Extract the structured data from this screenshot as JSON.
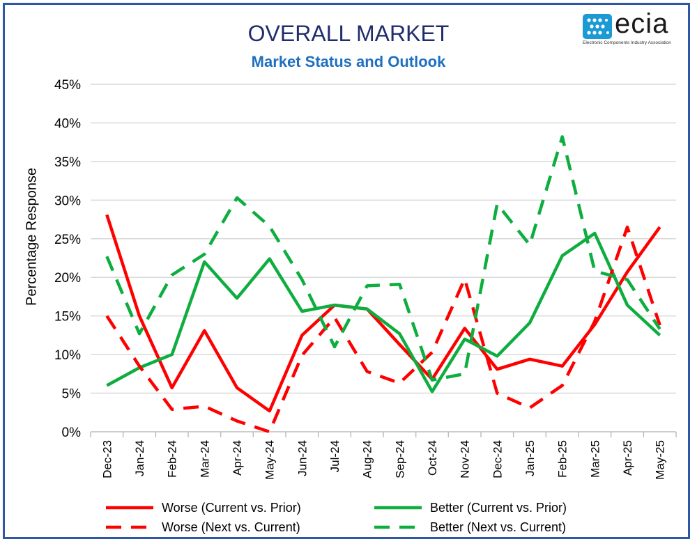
{
  "header": {
    "title": "OVERALL MARKET",
    "subtitle": "Market Status and Outlook"
  },
  "logo": {
    "word": "ecia",
    "tagline": "Electronic Components Industry Association",
    "icon": "ecia-logo-icon",
    "color": "#1b9ad6"
  },
  "chart_data": {
    "type": "line",
    "title": "OVERALL MARKET",
    "subtitle": "Market Status and Outlook",
    "xlabel": "",
    "ylabel": "Percentage Response",
    "ylim": [
      0,
      45
    ],
    "yticks": [
      "0%",
      "5%",
      "10%",
      "15%",
      "20%",
      "25%",
      "30%",
      "35%",
      "40%",
      "45%"
    ],
    "ytick_values": [
      0,
      5,
      10,
      15,
      20,
      25,
      30,
      35,
      40,
      45
    ],
    "grid": true,
    "legend_position": "bottom",
    "categories": [
      "Dec-23",
      "Jan-24",
      "Feb-24",
      "Mar-24",
      "Apr-24",
      "May-24",
      "Jun-24",
      "Jul-24",
      "Aug-24",
      "Sep-24",
      "Oct-24",
      "Nov-24",
      "Dec-24",
      "Jan-25",
      "Feb-25",
      "Mar-25",
      "Apr-25",
      "May-25"
    ],
    "series": [
      {
        "name": "Worse (Current vs. Prior)",
        "color": "#ff0000",
        "style": "solid",
        "values": [
          28.1,
          15.0,
          5.7,
          13.1,
          5.7,
          2.7,
          12.5,
          16.4,
          15.9,
          11.3,
          6.8,
          13.4,
          8.1,
          9.4,
          8.5,
          13.9,
          20.7,
          26.5
        ]
      },
      {
        "name": "Better (Current vs. Prior)",
        "color": "#0ead3f",
        "style": "solid",
        "values": [
          6.0,
          8.3,
          10.0,
          22.0,
          17.3,
          22.4,
          15.6,
          16.4,
          15.9,
          12.7,
          5.2,
          12.0,
          9.8,
          14.1,
          22.8,
          25.7,
          16.4,
          12.5
        ]
      },
      {
        "name": "Worse (Next vs. Current)",
        "color": "#ff0000",
        "style": "dashed",
        "values": [
          15.0,
          8.5,
          2.9,
          3.3,
          1.4,
          0.0,
          9.9,
          14.8,
          7.8,
          6.3,
          10.3,
          19.8,
          5.0,
          3.1,
          6.0,
          14.3,
          26.5,
          13.8
        ]
      },
      {
        "name": "Better (Next vs. Current)",
        "color": "#0ead3f",
        "style": "dashed",
        "values": [
          22.7,
          12.7,
          20.3,
          23.0,
          30.3,
          26.6,
          19.7,
          11.0,
          18.9,
          19.1,
          6.7,
          7.5,
          29.5,
          24.2,
          38.2,
          20.8,
          19.7,
          13.3
        ]
      }
    ]
  }
}
